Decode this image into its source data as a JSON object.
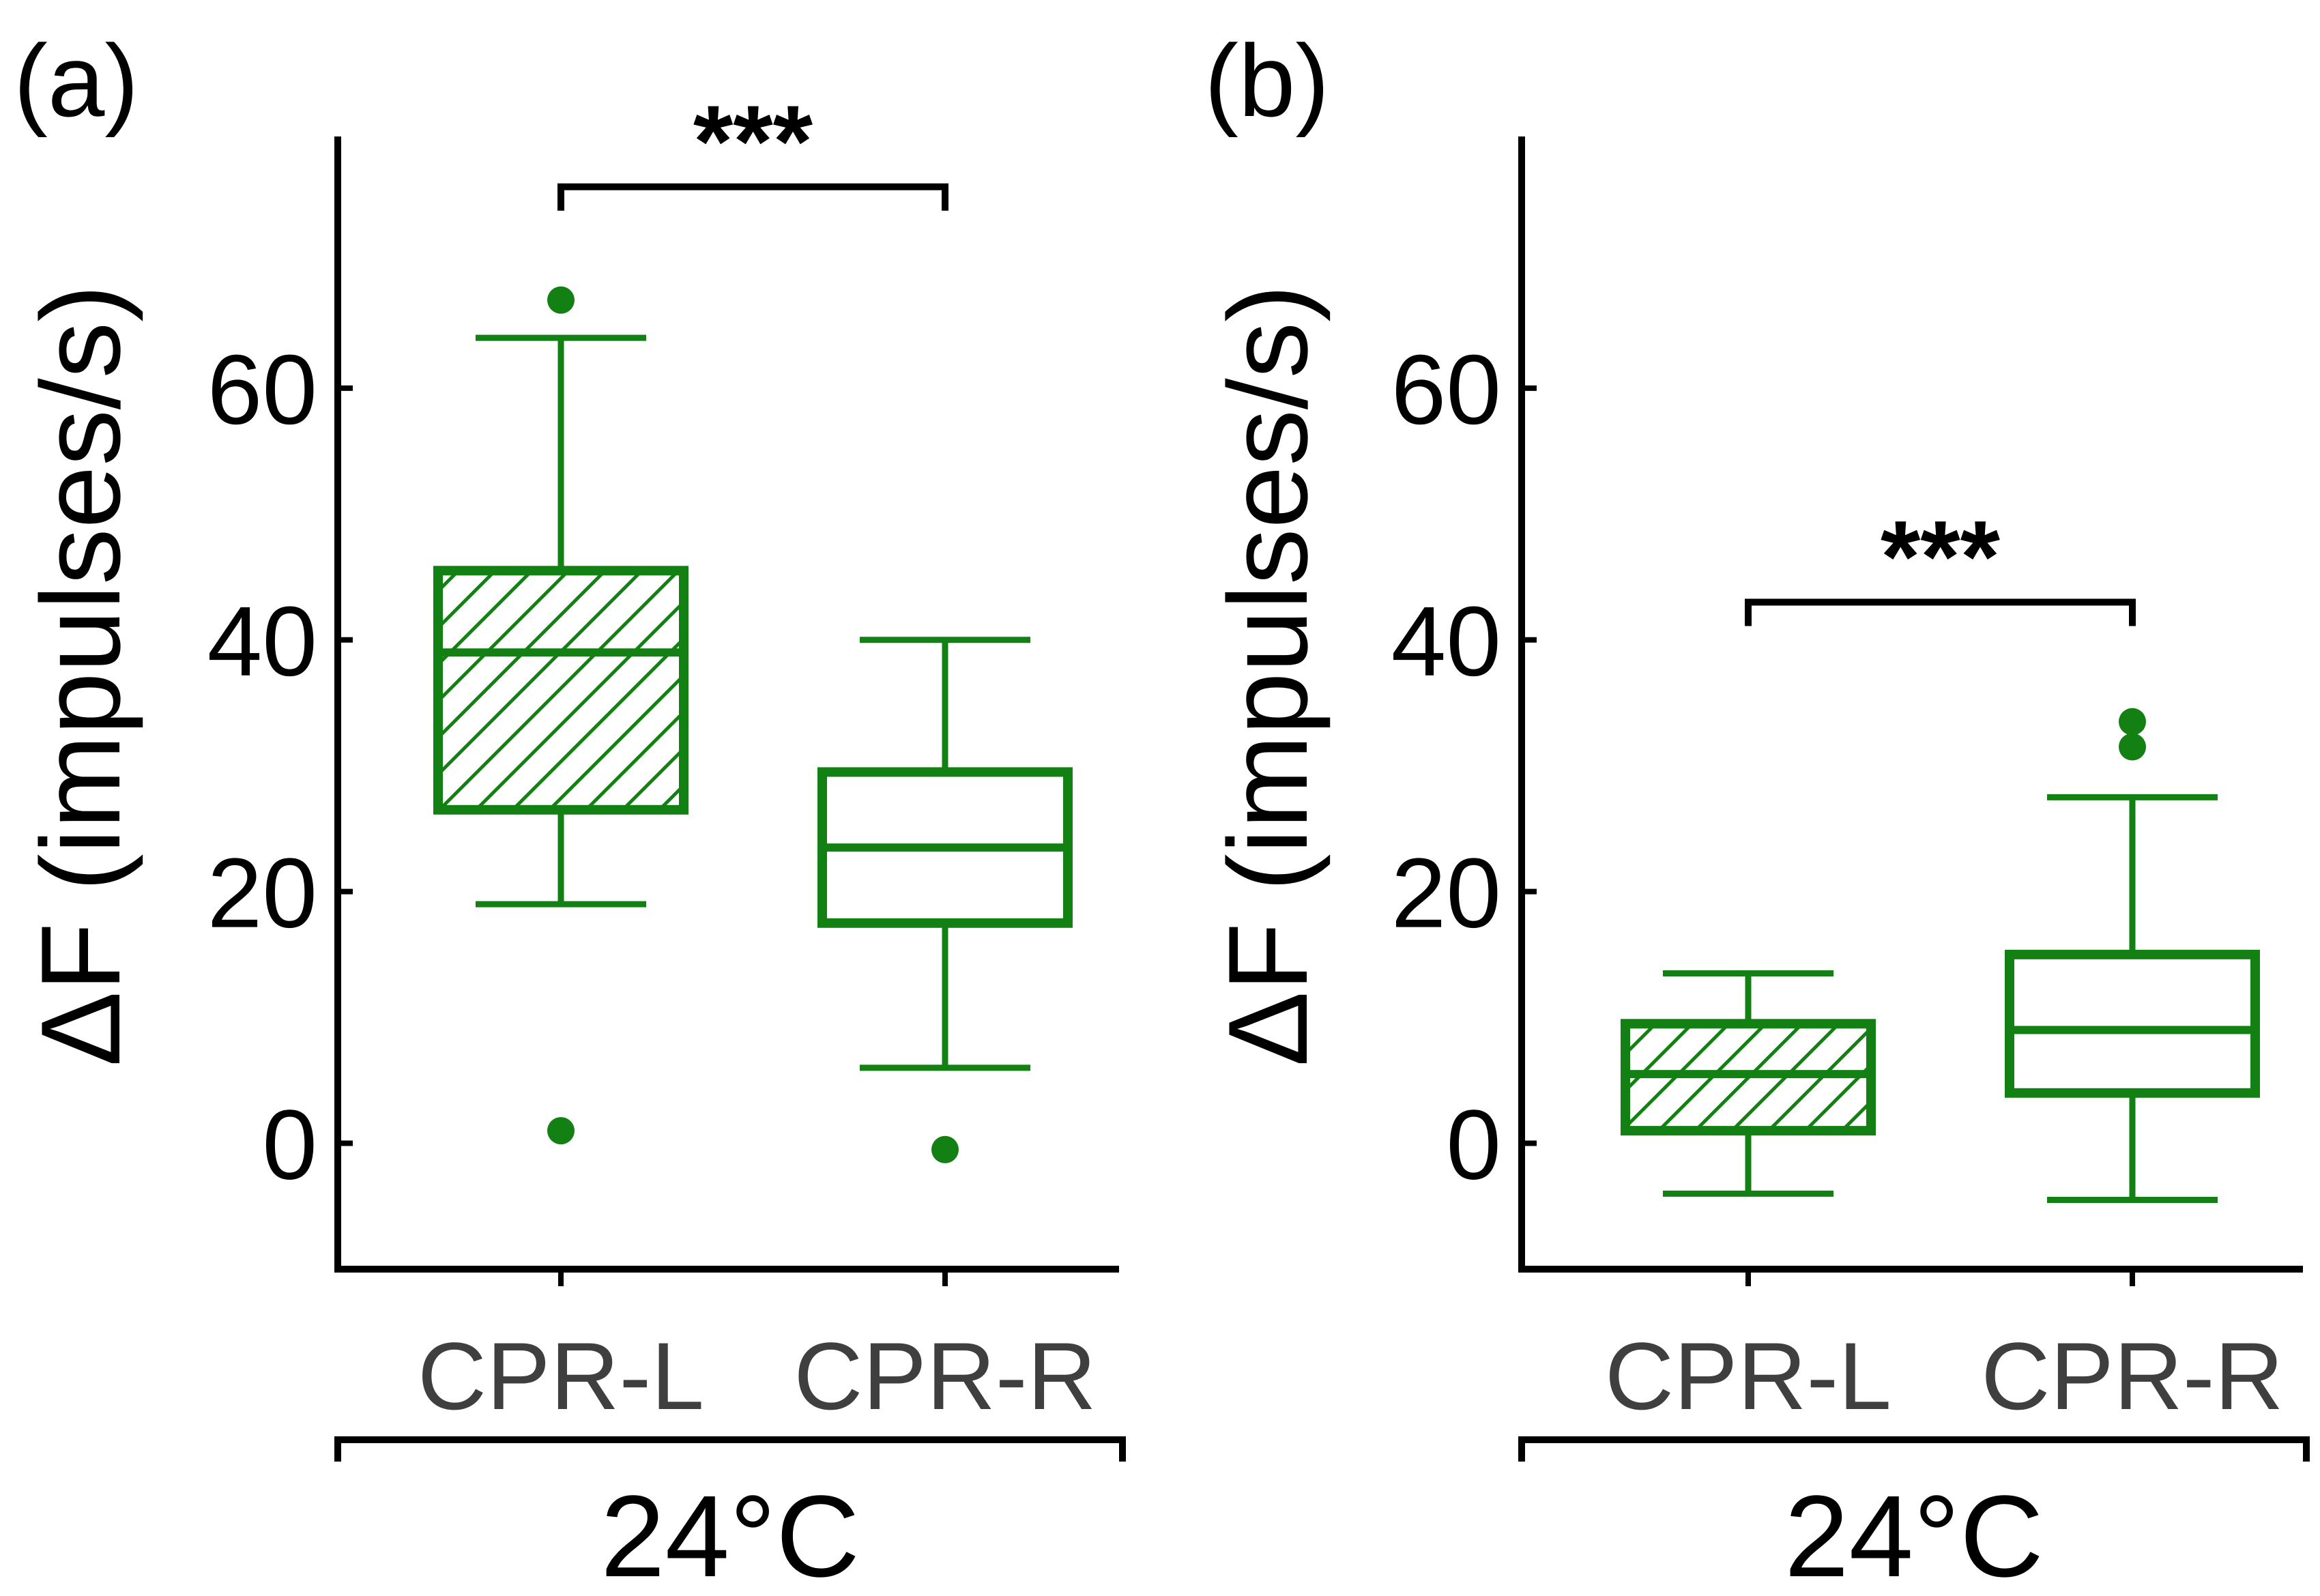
{
  "colors": {
    "series": "#128012",
    "axis": "#000000",
    "category_text": "#3f3f3f"
  },
  "chart_data": [
    {
      "panel": "(a)",
      "type": "box",
      "ylabel": "ΔF (impulses/s)",
      "ylim": [
        -10,
        80
      ],
      "yticks": [
        0,
        20,
        40,
        60
      ],
      "categories": [
        "CPR-L",
        "CPR-R"
      ],
      "group_label": "24°C",
      "significance": {
        "between": [
          "CPR-L",
          "CPR-R"
        ],
        "label": "***",
        "level": 76
      },
      "boxes": [
        {
          "category": "CPR-L",
          "hatched": true,
          "whisker_low": 19,
          "q1": 26.5,
          "median": 39,
          "q3": 45.5,
          "whisker_high": 64,
          "outliers": [
            67,
            1
          ]
        },
        {
          "category": "CPR-R",
          "hatched": false,
          "whisker_low": 6,
          "q1": 17.5,
          "median": 23.5,
          "q3": 29.5,
          "whisker_high": 40,
          "outliers": [
            -0.5
          ]
        }
      ]
    },
    {
      "panel": "(b)",
      "type": "box",
      "ylabel": "ΔF (impulses/s)",
      "ylim": [
        -10,
        80
      ],
      "yticks": [
        0,
        20,
        40,
        60
      ],
      "categories": [
        "CPR-L",
        "CPR-R"
      ],
      "group_label": "24°C",
      "significance": {
        "between": [
          "CPR-L",
          "CPR-R"
        ],
        "label": "***",
        "level": 43
      },
      "boxes": [
        {
          "category": "CPR-L",
          "hatched": true,
          "whisker_low": -4,
          "q1": 1,
          "median": 5.5,
          "q3": 9.5,
          "whisker_high": 13.5,
          "outliers": []
        },
        {
          "category": "CPR-R",
          "hatched": false,
          "whisker_low": -4.5,
          "q1": 4,
          "median": 9,
          "q3": 15,
          "whisker_high": 27.5,
          "outliers": [
            33.5,
            31.5
          ]
        }
      ]
    }
  ]
}
